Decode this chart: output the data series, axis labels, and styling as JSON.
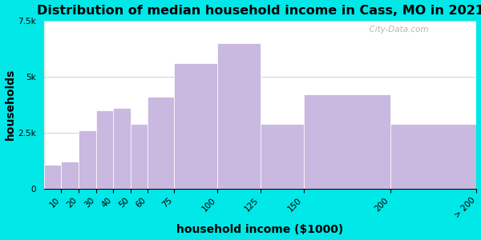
{
  "title": "Distribution of median household income in Cass, MO in 2021",
  "xlabel": "household income ($1000)",
  "ylabel": "households",
  "bar_labels": [
    "10",
    "20",
    "30",
    "40",
    "50",
    "60",
    "75",
    "100",
    "125",
    "150",
    "200",
    "> 200"
  ],
  "bar_edges": [
    0,
    10,
    20,
    30,
    40,
    50,
    60,
    75,
    100,
    125,
    150,
    200,
    250
  ],
  "bar_values": [
    1050,
    1200,
    2600,
    3500,
    3600,
    2900,
    4100,
    5600,
    6500,
    2900,
    4200,
    2900
  ],
  "bar_color": "#c9b8e0",
  "bar_edgecolor": "#ffffff",
  "ylim": [
    0,
    7500
  ],
  "ytick_vals": [
    0,
    2500,
    5000,
    7500
  ],
  "ytick_labels": [
    "0",
    "2.5k",
    "5k",
    "7.5k"
  ],
  "xtick_positions": [
    10,
    20,
    30,
    40,
    50,
    60,
    75,
    100,
    125,
    150,
    200,
    250
  ],
  "xtick_labels": [
    "10",
    "20",
    "30",
    "40",
    "50",
    "60",
    "75",
    "100",
    "125",
    "150",
    "200",
    "> 200"
  ],
  "bg_outer": "#00e8e8",
  "bg_color_left": "#d8f0d0",
  "bg_color_right": "#efefef",
  "title_fontsize": 11.5,
  "axis_label_fontsize": 10,
  "tick_fontsize": 7.5,
  "watermark": "  City-Data.com"
}
